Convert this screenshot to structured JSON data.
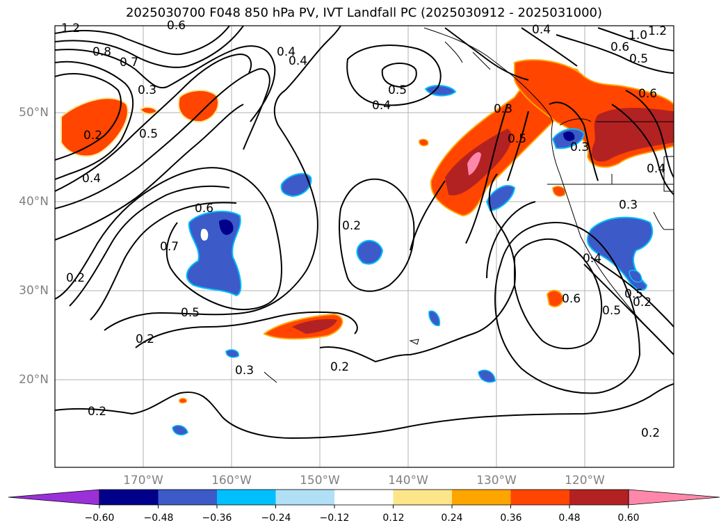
{
  "title": "2025030700 F048 850 hPa PV, IVT Landfall PC (2025030912 - 2025031000)",
  "map": {
    "lat_labels": [
      "50°N",
      "40°N",
      "30°N",
      "20°N"
    ],
    "lon_labels": [
      "170°W",
      "160°W",
      "150°W",
      "140°W",
      "130°W",
      "120°W"
    ],
    "contour_labels": [
      "1.2",
      "0.8",
      "0.7",
      "0.3",
      "0.2",
      "0.5",
      "0.4",
      "0.6",
      "0.7",
      "0.2",
      "0.5",
      "0.2",
      "0.3",
      "0.2",
      "0.2",
      "0.4",
      "0.5",
      "0.4",
      "0.2",
      "0.3",
      "0.5",
      "0.3",
      "0.6",
      "0.5",
      "0.4",
      "0.3",
      "0.6",
      "0.5",
      "0.4",
      "1.2",
      "1.0",
      "0.6",
      "0.5",
      "0.4",
      "0.2",
      "0.6",
      "0.4",
      "0.2"
    ]
  },
  "colorbar": {
    "ticks": [
      "−0.60",
      "−0.48",
      "−0.36",
      "−0.24",
      "−0.12",
      "0.12",
      "0.24",
      "0.36",
      "0.48",
      "0.60"
    ],
    "colors": [
      "#9b30d9",
      "#00008b",
      "#3c5ac8",
      "#00bfff",
      "#b0e0f6",
      "#ffffff",
      "#fde68a",
      "#ffa500",
      "#ff4500",
      "#b22222",
      "#ff88aa",
      "#ff88aa"
    ]
  }
}
